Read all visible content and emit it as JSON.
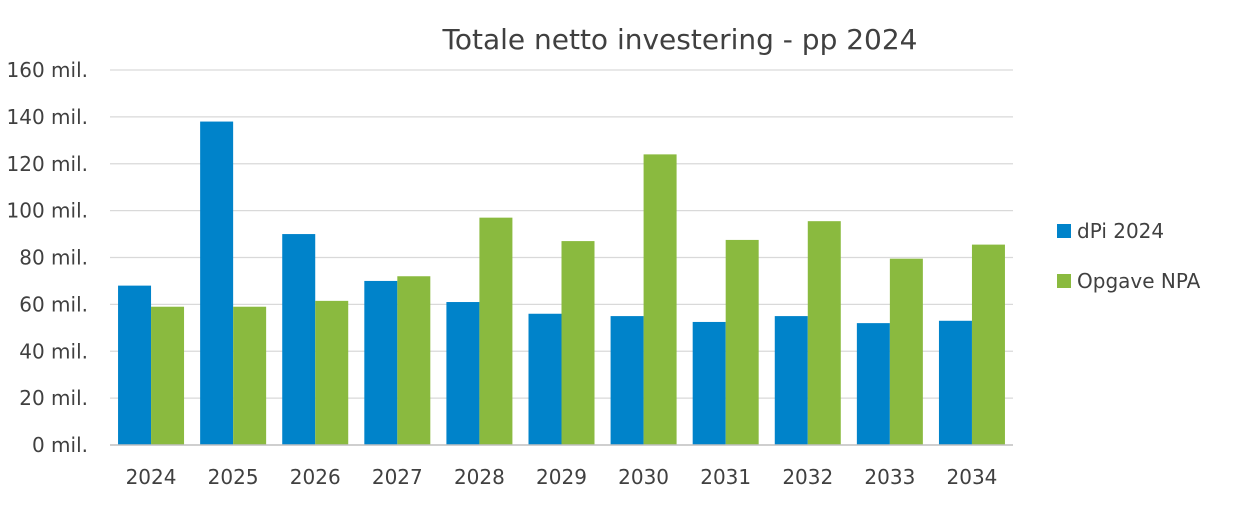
{
  "chart_data": {
    "type": "bar",
    "title": "Totale netto investering - pp 2024",
    "xlabel": "",
    "ylabel": "",
    "categories": [
      "2024",
      "2025",
      "2026",
      "2027",
      "2028",
      "2029",
      "2030",
      "2031",
      "2032",
      "2033",
      "2034"
    ],
    "series": [
      {
        "name": "dPi 2024",
        "color": "#0083ca",
        "values": [
          68,
          138,
          90,
          70,
          61,
          56,
          55,
          52.5,
          55,
          52,
          53
        ]
      },
      {
        "name": "Opgave NPA",
        "color": "#8aba3f",
        "values": [
          59,
          59,
          61.5,
          72,
          97,
          87,
          124,
          87.5,
          95.5,
          79.5,
          85.5
        ]
      }
    ],
    "ylim": [
      0,
      160
    ],
    "y_ticks": [
      0,
      20,
      40,
      60,
      80,
      100,
      120,
      140,
      160
    ],
    "y_tick_labels": [
      "0 mil.",
      "20 mil.",
      "40 mil.",
      "60 mil.",
      "80 mil.",
      "100 mil.",
      "120 mil.",
      "140 mil.",
      "160 mil."
    ],
    "grid": true,
    "legend_position": "right"
  }
}
